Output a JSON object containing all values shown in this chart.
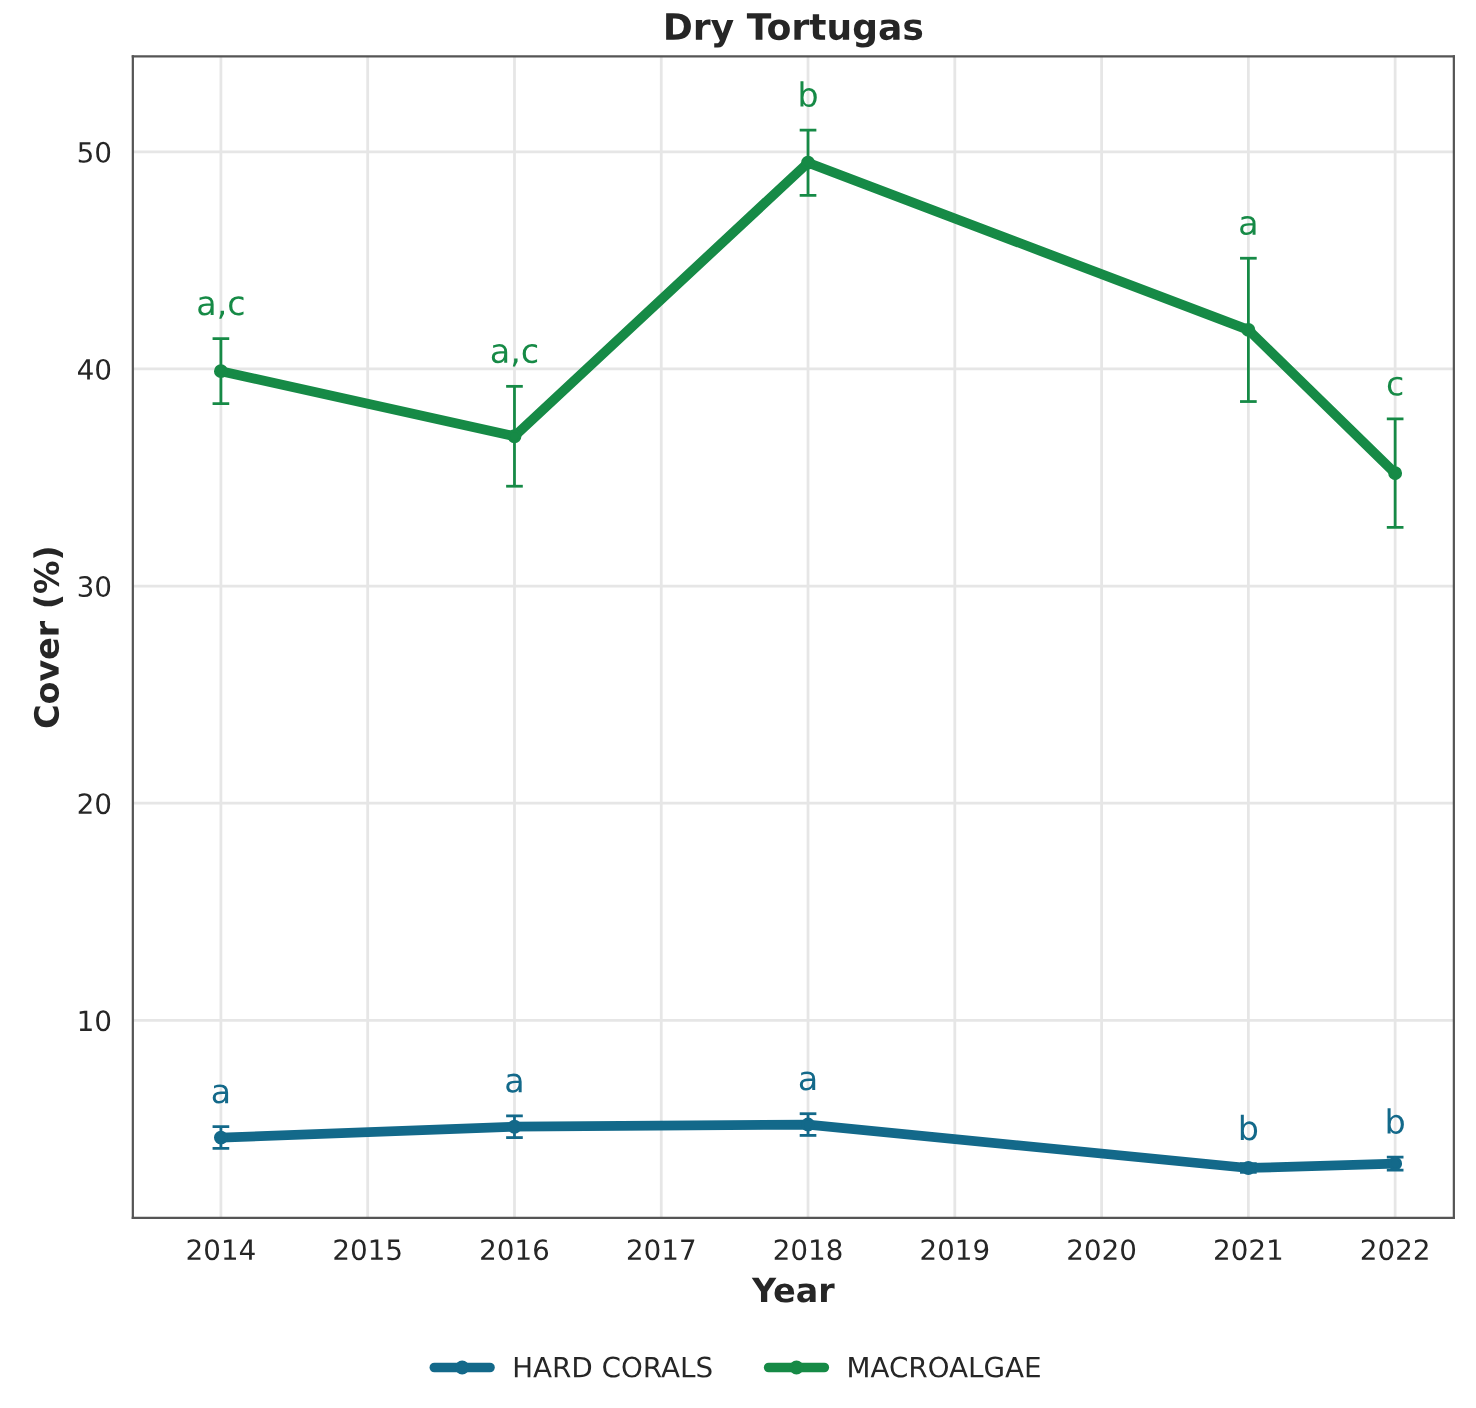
{
  "chart_data": {
    "type": "line",
    "title": "Dry Tortugas",
    "xlabel": "Year",
    "ylabel": "Cover (%)",
    "x": [
      2014,
      2016,
      2018,
      2021,
      2022
    ],
    "series": [
      {
        "name": "HARD CORALS",
        "color": "#13698a",
        "values": [
          4.6,
          5.1,
          5.2,
          3.2,
          3.4
        ],
        "errors": [
          0.5,
          0.5,
          0.5,
          0.2,
          0.3
        ]
      },
      {
        "name": "MACROALGAE",
        "color": "#168a46",
        "values": [
          39.9,
          36.9,
          49.5,
          41.8,
          35.2
        ],
        "errors": [
          1.5,
          2.3,
          1.5,
          3.3,
          2.5
        ]
      }
    ],
    "annotations": [
      {
        "text": "a",
        "x": 2014,
        "y": 4.6
      },
      {
        "text": "a",
        "x": 2016,
        "y": 5.1
      },
      {
        "text": "a",
        "x": 2018,
        "y": 5.2
      },
      {
        "text": "b",
        "x": 2021,
        "y": 3.2
      },
      {
        "text": "b",
        "x": 2022,
        "y": 3.4
      },
      {
        "text": "a,c",
        "x": 2014,
        "y": 39.9
      },
      {
        "text": "a,c",
        "x": 2016,
        "y": 36.9
      },
      {
        "text": "b",
        "x": 2018,
        "y": 49.5
      },
      {
        "text": "a",
        "x": 2021,
        "y": 41.8
      },
      {
        "text": "c",
        "x": 2022,
        "y": 35.2
      }
    ],
    "xlim": [
      2013.4,
      2022.4
    ],
    "xticks": [
      2014,
      2015,
      2016,
      2017,
      2018,
      2019,
      2020,
      2021,
      2022
    ],
    "ylim": [
      0.9,
      54.4
    ],
    "yticks": [
      10,
      20,
      30,
      40,
      50
    ],
    "grid": true,
    "legend": "bottom",
    "marker": "circle",
    "line_style": "solid"
  }
}
